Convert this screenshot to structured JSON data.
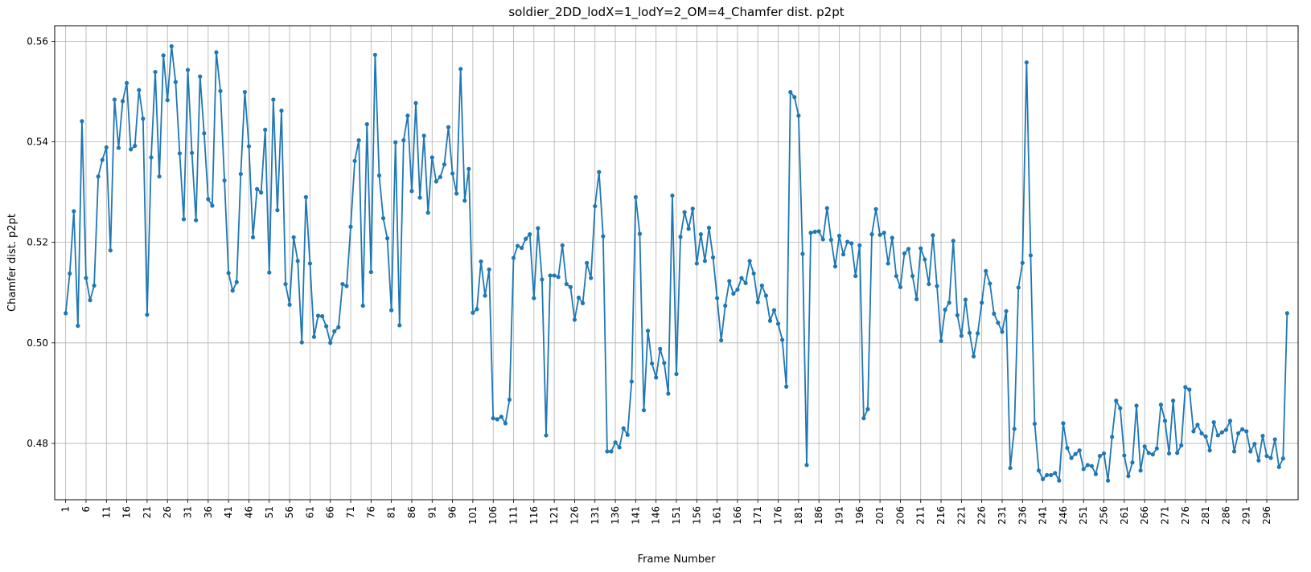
{
  "chart_data": {
    "type": "line",
    "title": "soldier_2DD_lodX=1_lodY=2_OM=4_Chamfer dist. p2pt",
    "xlabel": "Frame Number",
    "ylabel": "Chamfer dist. p2pt",
    "xlim": [
      -1.7,
      303.7
    ],
    "ylim": [
      0.4688,
      0.5631
    ],
    "grid": true,
    "line_color": "#1f77b4",
    "marker": "circle",
    "x_ticks": [
      "1",
      "6",
      "11",
      "16",
      "21",
      "26",
      "31",
      "36",
      "41",
      "46",
      "51",
      "56",
      "61",
      "66",
      "71",
      "76",
      "81",
      "86",
      "91",
      "96",
      "101",
      "106",
      "111",
      "116",
      "121",
      "126",
      "131",
      "136",
      "141",
      "146",
      "151",
      "156",
      "161",
      "166",
      "171",
      "176",
      "181",
      "186",
      "191",
      "196",
      "201",
      "206",
      "211",
      "216",
      "221",
      "226",
      "231",
      "236",
      "241",
      "246",
      "251",
      "256",
      "261",
      "266",
      "271",
      "276",
      "281",
      "286",
      "291",
      "296"
    ],
    "y_ticks": [
      "0.48",
      "0.50",
      "0.52",
      "0.54",
      "0.56"
    ],
    "series": [
      {
        "values": [
          0.5059,
          0.5138,
          0.5262,
          0.5034,
          0.5441,
          0.5129,
          0.5085,
          0.5114,
          0.5331,
          0.5364,
          0.5389,
          0.5184,
          0.5484,
          0.5388,
          0.5481,
          0.5517,
          0.5385,
          0.5392,
          0.5503,
          0.5446,
          0.5056,
          0.5369,
          0.5539,
          0.5331,
          0.5572,
          0.5483,
          0.559,
          0.5519,
          0.5377,
          0.5246,
          0.5543,
          0.5378,
          0.5244,
          0.553,
          0.5417,
          0.5286,
          0.5273,
          0.5578,
          0.5501,
          0.5323,
          0.5139,
          0.5104,
          0.5121,
          0.5336,
          0.5499,
          0.5391,
          0.521,
          0.5306,
          0.5299,
          0.5424,
          0.514,
          0.5484,
          0.5264,
          0.5462,
          0.5117,
          0.5076,
          0.521,
          0.5163,
          0.5001,
          0.529,
          0.5158,
          0.5012,
          0.5054,
          0.5053,
          0.5033,
          0.5,
          0.5023,
          0.5031,
          0.5117,
          0.5113,
          0.5231,
          0.5362,
          0.5403,
          0.5074,
          0.5435,
          0.5141,
          0.5573,
          0.5333,
          0.5248,
          0.5208,
          0.5065,
          0.5399,
          0.5035,
          0.5403,
          0.5452,
          0.5302,
          0.5477,
          0.5289,
          0.5412,
          0.5259,
          0.5369,
          0.5321,
          0.533,
          0.5355,
          0.5429,
          0.5337,
          0.5297,
          0.5545,
          0.5283,
          0.5346,
          0.506,
          0.5067,
          0.5162,
          0.5094,
          0.5146,
          0.485,
          0.4848,
          0.4853,
          0.484,
          0.4887,
          0.5169,
          0.5193,
          0.5189,
          0.5207,
          0.5216,
          0.5089,
          0.5228,
          0.5126,
          0.4816,
          0.5134,
          0.5134,
          0.5131,
          0.5194,
          0.5117,
          0.5111,
          0.5046,
          0.509,
          0.5079,
          0.5159,
          0.5129,
          0.5272,
          0.534,
          0.5212,
          0.4784,
          0.4784,
          0.4802,
          0.4792,
          0.483,
          0.4817,
          0.4923,
          0.529,
          0.5217,
          0.4866,
          0.5024,
          0.4959,
          0.4931,
          0.4988,
          0.496,
          0.4899,
          0.5293,
          0.4938,
          0.5211,
          0.526,
          0.5227,
          0.5267,
          0.5158,
          0.5216,
          0.5163,
          0.5229,
          0.517,
          0.5089,
          0.5005,
          0.5074,
          0.5123,
          0.5098,
          0.5106,
          0.5129,
          0.5119,
          0.5163,
          0.5138,
          0.5081,
          0.5114,
          0.5094,
          0.5044,
          0.5065,
          0.5038,
          0.5006,
          0.4913,
          0.5499,
          0.5489,
          0.5452,
          0.5177,
          0.4757,
          0.5219,
          0.5221,
          0.5222,
          0.5206,
          0.5268,
          0.5205,
          0.5152,
          0.5213,
          0.5176,
          0.5201,
          0.5198,
          0.5133,
          0.5194,
          0.485,
          0.4868,
          0.5216,
          0.5266,
          0.5215,
          0.5219,
          0.5158,
          0.5209,
          0.5133,
          0.5111,
          0.5178,
          0.5187,
          0.5133,
          0.5087,
          0.5188,
          0.5166,
          0.5117,
          0.5214,
          0.5113,
          0.5004,
          0.5066,
          0.508,
          0.5203,
          0.5055,
          0.5014,
          0.5086,
          0.502,
          0.4973,
          0.5019,
          0.508,
          0.5143,
          0.5118,
          0.5058,
          0.504,
          0.5022,
          0.5063,
          0.4751,
          0.4829,
          0.511,
          0.5159,
          0.5558,
          0.5174,
          0.4839,
          0.4746,
          0.4729,
          0.4737,
          0.4737,
          0.4741,
          0.4726,
          0.484,
          0.4791,
          0.4771,
          0.4779,
          0.4786,
          0.4749,
          0.4757,
          0.4755,
          0.4739,
          0.4775,
          0.478,
          0.4726,
          0.4813,
          0.4885,
          0.487,
          0.4776,
          0.4735,
          0.4762,
          0.4875,
          0.4746,
          0.4794,
          0.4781,
          0.4778,
          0.479,
          0.4877,
          0.4845,
          0.478,
          0.4885,
          0.4781,
          0.4796,
          0.4912,
          0.4907,
          0.4824,
          0.4837,
          0.482,
          0.4814,
          0.4786,
          0.4842,
          0.4816,
          0.4822,
          0.4827,
          0.4845,
          0.4784,
          0.482,
          0.4828,
          0.4824,
          0.4784,
          0.4799,
          0.4766,
          0.4815,
          0.4775,
          0.4771,
          0.4808,
          0.4753,
          0.477,
          0.5059
        ]
      }
    ]
  }
}
